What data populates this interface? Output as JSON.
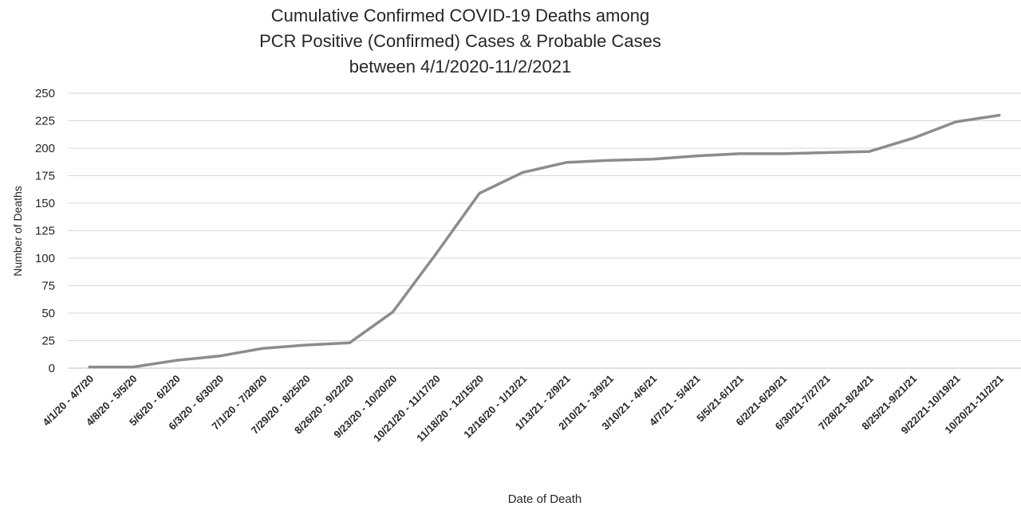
{
  "chart_data": {
    "type": "line",
    "title": [
      "Cumulative Confirmed COVID-19 Deaths among",
      "PCR Positive (Confirmed) Cases & Probable Cases",
      "between 4/1/2020-11/2/2021"
    ],
    "xlabel": "Date of Death",
    "ylabel": "Number of Deaths",
    "ylim": [
      0,
      250
    ],
    "y_ticks": [
      0,
      25,
      50,
      75,
      100,
      125,
      150,
      175,
      200,
      225,
      250
    ],
    "grid": true,
    "legend": "none",
    "categories": [
      "4/1/20 - 4/7/20",
      "4/8/20 - 5/5/20",
      "5/6/20 - 6/2/20",
      "6/3/20 - 6/30/20",
      "7/1/20 - 7/28/20",
      "7/29/20 - 8/25/20",
      "8/26/20 - 9/22/20",
      "9/23/20 - 10/20/20",
      "10/21/20 - 11/17/20",
      "11/18/20 - 12/15/20",
      "12/16/20 - 1/12/21",
      "1/13/21 - 2/9/21",
      "2/10/21 - 3/9/21",
      "3/10/21 - 4/6/21",
      "4/7/21 - 5/4/21",
      "5/5/21-6/1/21",
      "6/2/21-6/29/21",
      "6/30/21-7/27/21",
      "7/28/21-8/24/21",
      "8/25/21-9/21/21",
      "9/22/21-10/19/21",
      "10/20/21-11/2/21"
    ],
    "series": [
      {
        "values": [
          1,
          1,
          7,
          11,
          18,
          21,
          23,
          51,
          104,
          159,
          178,
          187,
          189,
          190,
          193,
          195,
          195,
          196,
          197,
          209,
          224,
          230
        ]
      }
    ],
    "colors": {
      "line": "#8c8c8c",
      "grid": "#d9d9d9",
      "text": "#262626",
      "axis": "#bfbfbf"
    }
  }
}
